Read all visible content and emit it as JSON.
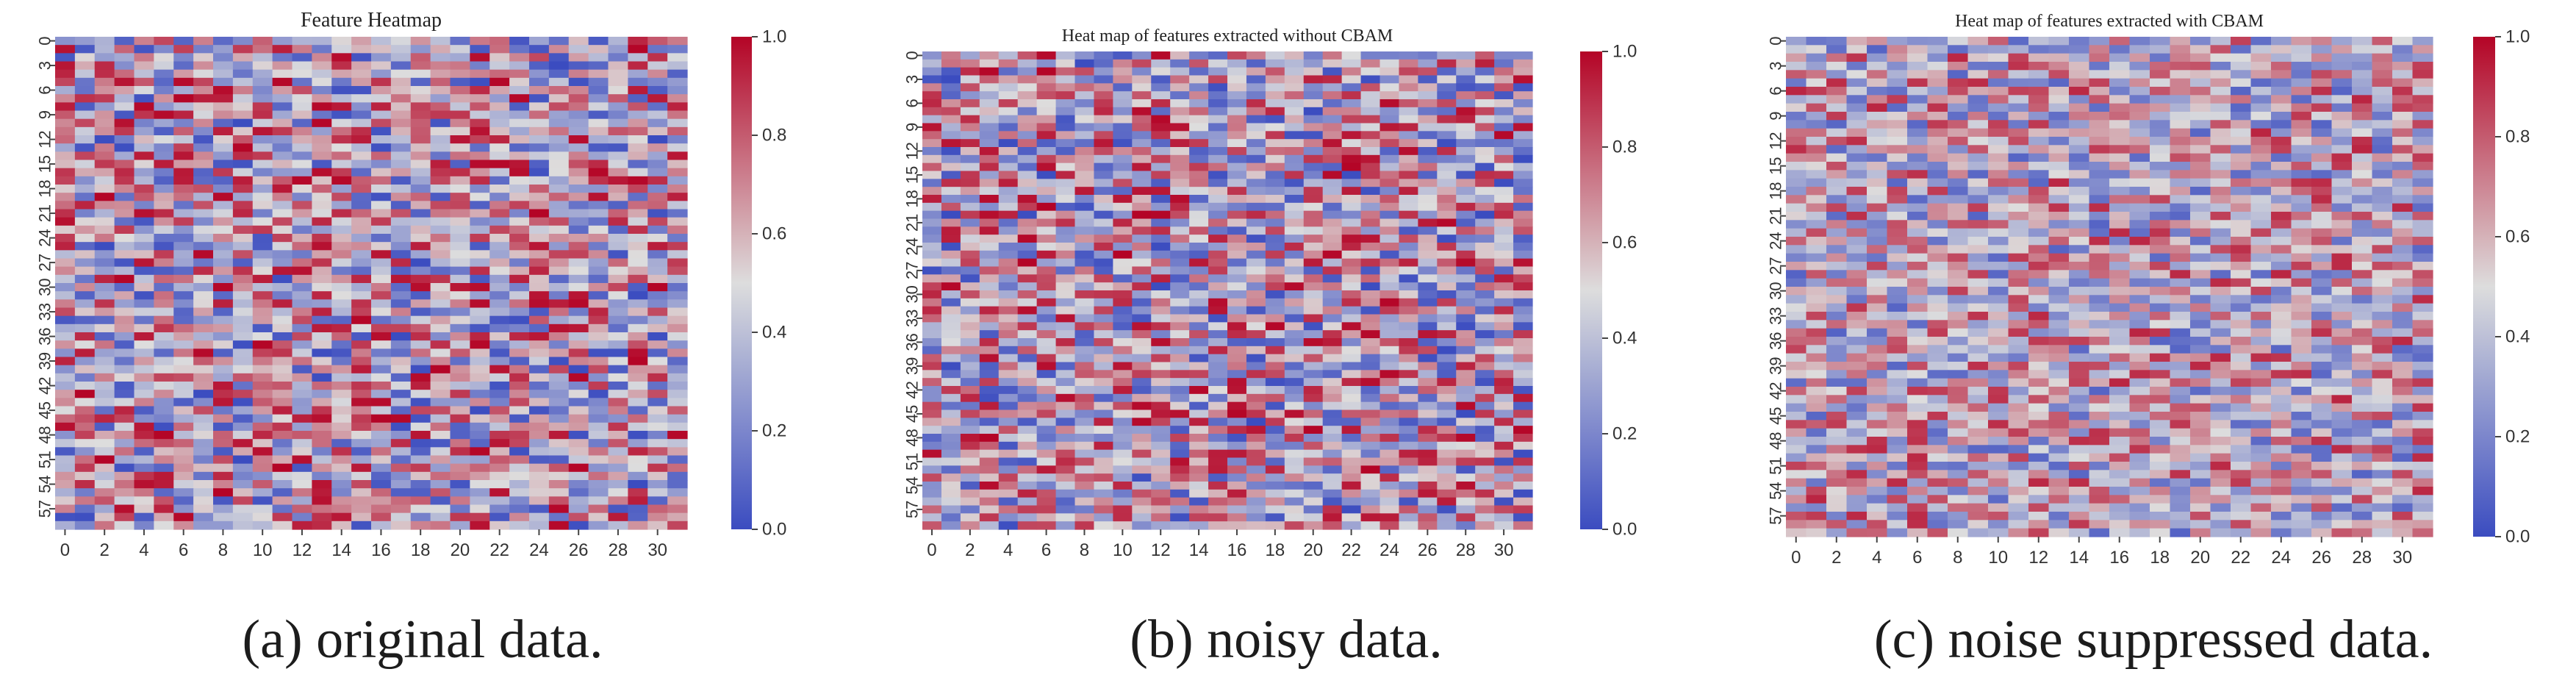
{
  "chart_data": [
    {
      "type": "heatmap",
      "title": "Feature Heatmap",
      "caption": "(a) original data.",
      "rows": 60,
      "cols": 32,
      "seed": 11,
      "value_range": [
        0.0,
        1.0
      ],
      "x_tick_labels": [
        "0",
        "2",
        "4",
        "6",
        "8",
        "10",
        "12",
        "14",
        "16",
        "18",
        "20",
        "22",
        "24",
        "26",
        "28",
        "30"
      ],
      "y_tick_labels": [
        "0",
        "3",
        "6",
        "9",
        "12",
        "15",
        "18",
        "21",
        "24",
        "27",
        "30",
        "33",
        "36",
        "39",
        "42",
        "45",
        "48",
        "51",
        "54",
        "57"
      ],
      "colorbar_ticks": [
        "0.0",
        "0.2",
        "0.4",
        "0.6",
        "0.8",
        "1.0"
      ],
      "colormap": "coolwarm",
      "note": "Cell values are pseudo-random in [0,1] (cells too small to read individually)."
    },
    {
      "type": "heatmap",
      "title": "Heat map of features extracted without CBAM",
      "caption": "(b) noisy data.",
      "rows": 60,
      "cols": 32,
      "seed": 27,
      "value_range": [
        0.0,
        1.0
      ],
      "x_tick_labels": [
        "0",
        "2",
        "4",
        "6",
        "8",
        "10",
        "12",
        "14",
        "16",
        "18",
        "20",
        "22",
        "24",
        "26",
        "28",
        "30"
      ],
      "y_tick_labels": [
        "0",
        "3",
        "6",
        "9",
        "12",
        "15",
        "18",
        "21",
        "24",
        "27",
        "30",
        "33",
        "36",
        "39",
        "42",
        "45",
        "48",
        "51",
        "54",
        "57"
      ],
      "colorbar_ticks": [
        "0.0",
        "0.2",
        "0.4",
        "0.6",
        "0.8",
        "1.0"
      ],
      "colormap": "coolwarm",
      "note": "Cell values are pseudo-random in [0,1] (cells too small to read individually)."
    },
    {
      "type": "heatmap",
      "title": "Heat map of features extracted with CBAM",
      "caption": "(c) noise suppressed data.",
      "rows": 60,
      "cols": 32,
      "seed": 53,
      "value_range": [
        0.0,
        1.0
      ],
      "x_tick_labels": [
        "0",
        "2",
        "4",
        "6",
        "8",
        "10",
        "12",
        "14",
        "16",
        "18",
        "20",
        "22",
        "24",
        "26",
        "28",
        "30"
      ],
      "y_tick_labels": [
        "0",
        "3",
        "6",
        "9",
        "12",
        "15",
        "18",
        "21",
        "24",
        "27",
        "30",
        "33",
        "36",
        "39",
        "42",
        "45",
        "48",
        "51",
        "54",
        "57"
      ],
      "colorbar_ticks": [
        "0.0",
        "0.2",
        "0.4",
        "0.6",
        "0.8",
        "1.0"
      ],
      "colormap": "coolwarm",
      "note": "Cell values are pseudo-random in [0,1] (cells too small to read individually)."
    }
  ],
  "colors": {
    "low": "#3b4cc0",
    "mid": "#dddddd",
    "high": "#b40426"
  }
}
